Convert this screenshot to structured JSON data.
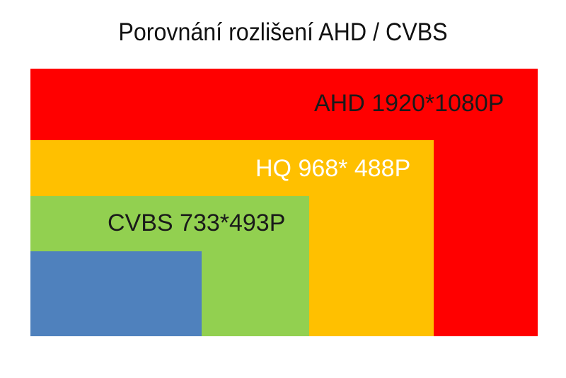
{
  "title": "Porovnání rozlišení AHD / CVBS",
  "colors": {
    "ahd": "#ff0000",
    "hq": "#ffc000",
    "cvbs": "#92d050",
    "inner": "#4f81bd"
  },
  "labels": {
    "ahd": "AHD 1920*1080P",
    "hq": "HQ 968* 488P",
    "cvbs": "CVBS 733*493P"
  }
}
